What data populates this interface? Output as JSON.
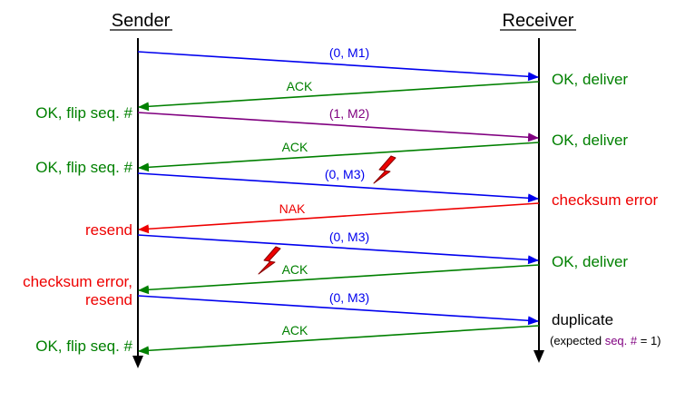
{
  "headers": {
    "sender": "Sender",
    "receiver": "Receiver"
  },
  "colors": {
    "blue": "#0000ee",
    "green": "#008000",
    "purple": "#800080",
    "red": "#ee0000",
    "black": "#000000",
    "bolt_fill": "#ee0000",
    "bolt_stroke": "#880000"
  },
  "messages": [
    {
      "label": "(0, M1)",
      "direction": "sender-to-receiver",
      "color": "blue"
    },
    {
      "label": "ACK",
      "direction": "receiver-to-sender",
      "color": "green"
    },
    {
      "label": "(1, M2)",
      "direction": "sender-to-receiver",
      "color": "purple"
    },
    {
      "label": "ACK",
      "direction": "receiver-to-sender",
      "color": "green"
    },
    {
      "label": "(0, M3)",
      "direction": "sender-to-receiver",
      "color": "blue",
      "corrupted": true
    },
    {
      "label": "NAK",
      "direction": "receiver-to-sender",
      "color": "red"
    },
    {
      "label": "(0, M3)",
      "direction": "sender-to-receiver",
      "color": "blue"
    },
    {
      "label": "ACK",
      "direction": "receiver-to-sender",
      "color": "green",
      "corrupted": true
    },
    {
      "label": "(0, M3)",
      "direction": "sender-to-receiver",
      "color": "blue"
    },
    {
      "label": "ACK",
      "direction": "receiver-to-sender",
      "color": "green"
    }
  ],
  "sender_notes": [
    {
      "text": "OK, flip seq. #",
      "color": "green"
    },
    {
      "text": "OK, flip seq. #",
      "color": "green"
    },
    {
      "text": "resend",
      "color": "red"
    },
    {
      "text": "checksum error,",
      "color": "red"
    },
    {
      "text": "resend",
      "color": "red"
    },
    {
      "text": "OK, flip seq. #",
      "color": "green"
    }
  ],
  "receiver_notes": [
    {
      "text": "OK, deliver",
      "color": "green"
    },
    {
      "text": "OK, deliver",
      "color": "green"
    },
    {
      "text": "checksum error",
      "color": "red"
    },
    {
      "text": "OK, deliver",
      "color": "green"
    },
    {
      "text": "duplicate",
      "color": "black"
    }
  ],
  "receiver_footnote": {
    "prefix": "(expected ",
    "highlight": "seq. #",
    "suffix": " = 1)",
    "highlight_color": "purple"
  }
}
